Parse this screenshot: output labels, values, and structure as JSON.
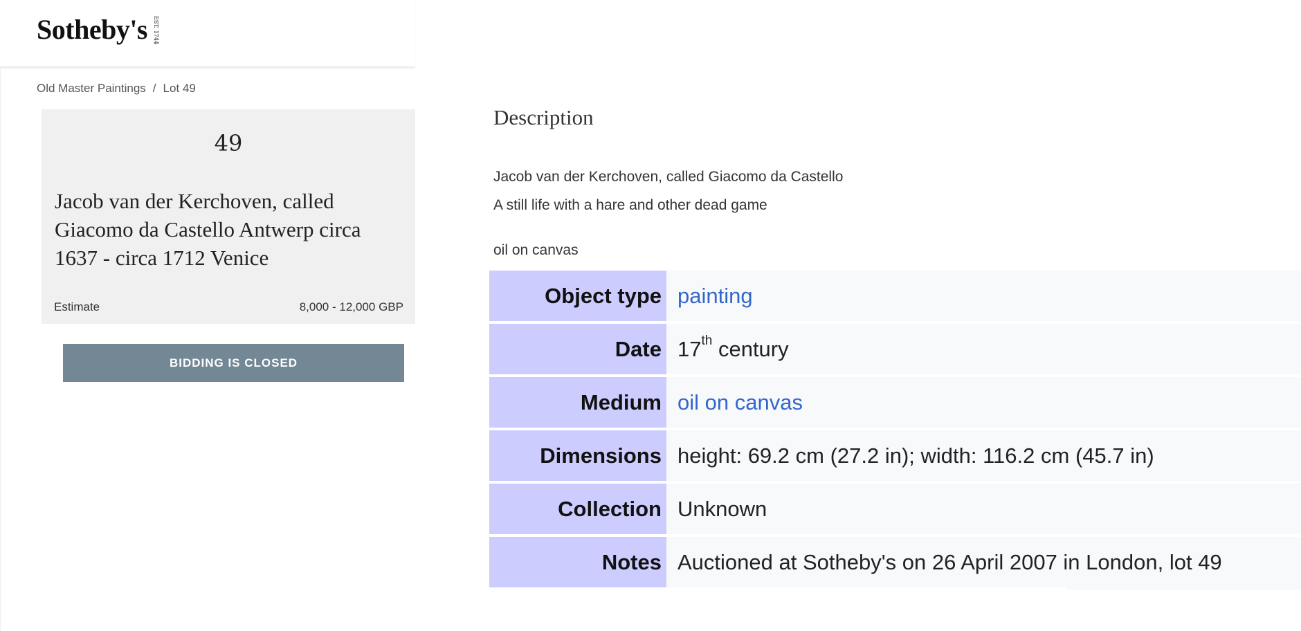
{
  "header": {
    "logo": "Sotheby's",
    "logo_est": "EST. 1744"
  },
  "breadcrumb": {
    "items": [
      "Old Master Paintings",
      "Lot 49"
    ],
    "separator": "/"
  },
  "lot_card": {
    "lot_number": "49",
    "title": "Jacob van der Kerchoven, called Giacomo da Castello Antwerp circa 1637 - circa 1712 Venice",
    "estimate_label": "Estimate",
    "estimate_value": "8,000 - 12,000 GBP"
  },
  "bidding_button": "BIDDING IS CLOSED",
  "description": {
    "heading": "Description",
    "lines": [
      "Jacob van der Kerchoven, called Giacomo da Castello",
      "A still life with a hare and other dead game",
      "oil on canvas"
    ]
  },
  "info_table": {
    "rows": [
      {
        "label": "Object type",
        "value": "painting"
      },
      {
        "label": "Date",
        "value": "17",
        "sup": "th",
        "value_rest": " century"
      },
      {
        "label": "Medium",
        "value": "oil on canvas"
      },
      {
        "label": "Dimensions",
        "value": "height: 69.2 cm (27.2 in); width: 116.2 cm (45.7 in)"
      },
      {
        "label": "Collection",
        "value": "Unknown"
      },
      {
        "label": "Notes",
        "value": "Auctioned at Sotheby's on 26 April 2007 in London, lot 49"
      }
    ],
    "colors": {
      "label_bg": "#ccccff",
      "value_bg": "#f8f9fa",
      "link": "#3366cc"
    }
  },
  "colors": {
    "button_bg": "#738795",
    "card_bg": "#f0f0f0"
  }
}
